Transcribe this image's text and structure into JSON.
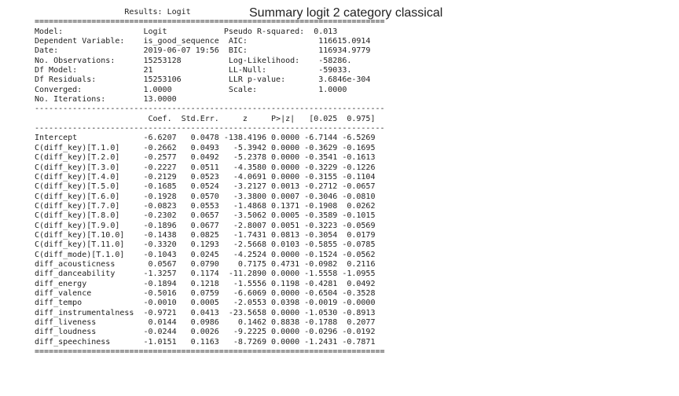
{
  "figure_title": "Summary logit 2 category classical",
  "report": {
    "header": "                   Results: Logit",
    "rule_double": "==========================================================================",
    "rule_single": "--------------------------------------------------------------------------",
    "info_lines": [
      "Model:                 Logit            Pseudo R-squared:  0.013",
      "Dependent Variable:    is_good_sequence  AIC:               116615.0914",
      "Date:                  2019-06-07 19:56  BIC:               116934.9779",
      "No. Observations:      15253128          Log-Likelihood:    -58286.",
      "Df Model:              21                LL-Null:           -59033.",
      "Df Residuals:          15253106          LLR p-value:       3.6846e-304",
      "Converged:             1.0000            Scale:             1.0000",
      "No. Iterations:        13.0000"
    ],
    "columns_line": "                        Coef.  Std.Err.     z     P>|z|   [0.025  0.975]",
    "coef_lines": [
      "Intercept              -6.6207   0.0478 -138.4196 0.0000 -6.7144 -6.5269",
      "C(diff_key)[T.1.0]     -0.2662   0.0493   -5.3942 0.0000 -0.3629 -0.1695",
      "C(diff_key)[T.2.0]     -0.2577   0.0492   -5.2378 0.0000 -0.3541 -0.1613",
      "C(diff_key)[T.3.0]     -0.2227   0.0511   -4.3580 0.0000 -0.3229 -0.1226",
      "C(diff_key)[T.4.0]     -0.2129   0.0523   -4.0691 0.0000 -0.3155 -0.1104",
      "C(diff_key)[T.5.0]     -0.1685   0.0524   -3.2127 0.0013 -0.2712 -0.0657",
      "C(diff_key)[T.6.0]     -0.1928   0.0570   -3.3800 0.0007 -0.3046 -0.0810",
      "C(diff_key)[T.7.0]     -0.0823   0.0553   -1.4868 0.1371 -0.1908  0.0262",
      "C(diff_key)[T.8.0]     -0.2302   0.0657   -3.5062 0.0005 -0.3589 -0.1015",
      "C(diff_key)[T.9.0]     -0.1896   0.0677   -2.8007 0.0051 -0.3223 -0.0569",
      "C(diff_key)[T.10.0]    -0.1438   0.0825   -1.7431 0.0813 -0.3054  0.0179",
      "C(diff_key)[T.11.0]    -0.3320   0.1293   -2.5668 0.0103 -0.5855 -0.0785",
      "C(diff_mode)[T.1.0]    -0.1043   0.0245   -4.2524 0.0000 -0.1524 -0.0562",
      "diff_acousticness       0.0567   0.0790    0.7175 0.4731 -0.0982  0.2116",
      "diff_danceability      -1.3257   0.1174  -11.2890 0.0000 -1.5558 -1.0955",
      "diff_energy            -0.1894   0.1218   -1.5556 0.1198 -0.4281  0.0492",
      "diff_valence           -0.5016   0.0759   -6.6069 0.0000 -0.6504 -0.3528",
      "diff_tempo             -0.0010   0.0005   -2.0553 0.0398 -0.0019 -0.0000",
      "diff_instrumentalness  -0.9721   0.0413  -23.5658 0.0000 -1.0530 -0.8913",
      "diff_liveness           0.0144   0.0986    0.1462 0.8838 -0.1788  0.2077",
      "diff_loudness          -0.0244   0.0026   -9.2225 0.0000 -0.0296 -0.0192",
      "diff_speechiness       -1.0151   0.1163   -8.7269 0.0000 -1.2431 -0.7871"
    ]
  }
}
